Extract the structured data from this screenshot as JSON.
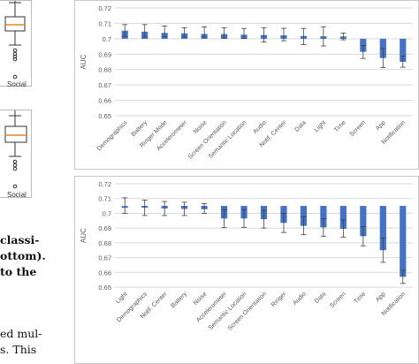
{
  "left_strip": {
    "thumb_top_label": "Social",
    "thumb_bottom_label": "Social",
    "text_lines": [
      {
        "text": "classi-",
        "bold": true
      },
      {
        "text": "ottom).",
        "bold": true
      },
      {
        "text": "to the",
        "bold": true
      },
      {
        "text": "ed mul-",
        "bold": false
      },
      {
        "text": "s.  This",
        "bold": false
      }
    ]
  },
  "chart_data": [
    {
      "type": "bar",
      "title": "",
      "ylabel": "AUC",
      "xlabel": "",
      "ylim": [
        0.65,
        0.72
      ],
      "yticks": [
        "0.65",
        "0.66",
        "0.67",
        "0.68",
        "0.69",
        "0.7",
        "0.71",
        "0.72"
      ],
      "grid": true,
      "baseline": 0.7,
      "bar_color": "#4472c4",
      "categories": [
        "Demographics",
        "Battery",
        "Ringer Mode",
        "Accelerometer",
        "Noise",
        "Screen Orientation",
        "Semantic Location",
        "Audio",
        "Notif. Center",
        "Data",
        "Light",
        "Time",
        "Screen",
        "App",
        "Notification"
      ],
      "values": [
        0.7052,
        0.7046,
        0.7038,
        0.7035,
        0.7031,
        0.703,
        0.7026,
        0.7024,
        0.7022,
        0.7018,
        0.7016,
        0.7015,
        0.6915,
        0.6875,
        0.685
      ],
      "err_low": [
        0.7015,
        0.701,
        0.7012,
        0.701,
        0.701,
        0.7005,
        0.7002,
        0.6978,
        0.6987,
        0.6962,
        0.6953,
        0.6993,
        0.6872,
        0.6812,
        0.6815
      ],
      "err_high": [
        0.7092,
        0.7092,
        0.7082,
        0.7072,
        0.7077,
        0.7072,
        0.7067,
        0.7072,
        0.7068,
        0.7067,
        0.7078,
        0.7037,
        0.6957,
        0.6937,
        0.6887
      ]
    },
    {
      "type": "bar",
      "title": "",
      "ylabel": "AUC",
      "xlabel": "",
      "ylim": [
        0.65,
        0.72
      ],
      "yticks": [
        "0.65",
        "0.66",
        "0.67",
        "0.68",
        "0.69",
        "0.7",
        "0.71",
        "0.72"
      ],
      "grid": true,
      "baseline": 0.705,
      "bar_color": "#4472c4",
      "categories": [
        "Light",
        "Demographics",
        "Notif. Center",
        "Battery",
        "Noise",
        "Accelerometer",
        "Semantic Location",
        "Screen Orientation",
        "Ringer",
        "Audio",
        "Data",
        "Screen",
        "Time",
        "App",
        "Notification"
      ],
      "values": [
        0.7043,
        0.7038,
        0.7033,
        0.703,
        0.7028,
        0.6965,
        0.6965,
        0.696,
        0.6935,
        0.6915,
        0.6905,
        0.6895,
        0.6845,
        0.675,
        0.657
      ],
      "err_low": [
        0.7,
        0.6985,
        0.6985,
        0.6985,
        0.7,
        0.6903,
        0.6905,
        0.69,
        0.687,
        0.6855,
        0.6845,
        0.6838,
        0.678,
        0.6668,
        0.6525
      ],
      "err_high": [
        0.7105,
        0.709,
        0.708,
        0.7075,
        0.7065,
        0.7025,
        0.7025,
        0.702,
        0.7,
        0.6975,
        0.6965,
        0.6955,
        0.691,
        0.6832,
        0.6615
      ]
    }
  ]
}
